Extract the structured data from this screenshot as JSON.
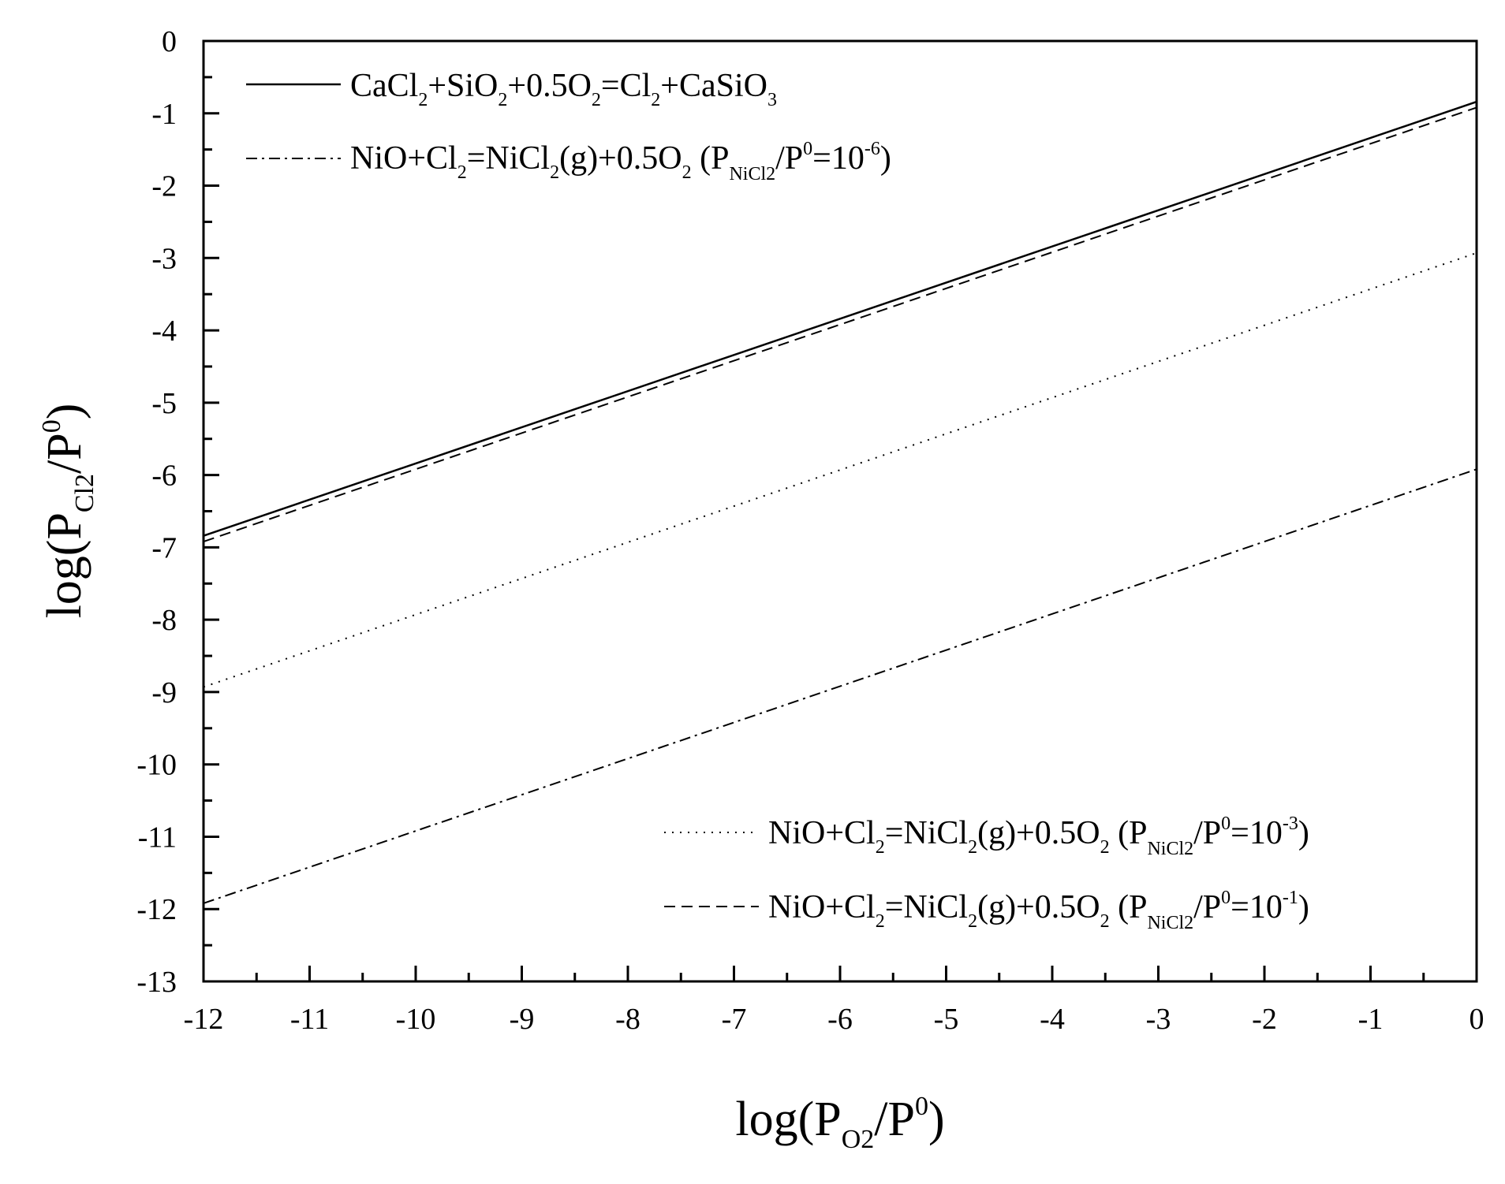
{
  "chart_data": {
    "type": "line",
    "xlabel": {
      "main": "log(P",
      "sub": "O2",
      "mid": "/P",
      "sup": "0",
      "end": ")"
    },
    "ylabel": {
      "main": "log(P",
      "sub": "Cl2",
      "mid": "/P",
      "sup": "0",
      "end": ")"
    },
    "xlim": [
      -12,
      0
    ],
    "ylim": [
      -13,
      0
    ],
    "xticks": [
      -12,
      -11,
      -10,
      -9,
      -8,
      -7,
      -6,
      -5,
      -4,
      -3,
      -2,
      -1,
      0
    ],
    "yticks": [
      0,
      -1,
      -2,
      -3,
      -4,
      -5,
      -6,
      -7,
      -8,
      -9,
      -10,
      -11,
      -12,
      -13
    ],
    "grid": false,
    "series": [
      {
        "name": "CaCl2+SiO2+0.5O2=Cl2+CaSiO3",
        "style": "solid",
        "x": [
          -12,
          0
        ],
        "y": [
          -6.84,
          -0.84
        ]
      },
      {
        "name": "NiO+Cl2=NiCl2(g)+0.5O2 (PNiCl2/P0=10-6)",
        "style": "dashdot",
        "x": [
          -12,
          0
        ],
        "y": [
          -11.92,
          -5.92
        ]
      },
      {
        "name": "NiO+Cl2=NiCl2(g)+0.5O2 (PNiCl2/P0=10-3)",
        "style": "dotted",
        "x": [
          -12,
          0
        ],
        "y": [
          -8.93,
          -2.93
        ]
      },
      {
        "name": "NiO+Cl2=NiCl2(g)+0.5O2 (PNiCl2/P0=10-1)",
        "style": "dashed",
        "x": [
          -12,
          0
        ],
        "y": [
          -6.92,
          -0.92
        ]
      }
    ],
    "legend_text": {
      "a": {
        "t1": "CaCl",
        "s1": "2",
        "t2": "+SiO",
        "s2": "2",
        "t3": "+0.5O",
        "s3": "2",
        "t4": "=Cl",
        "s4": "2",
        "t5": "+CaSiO",
        "s5": "3"
      },
      "b": {
        "t1": "NiO+Cl",
        "s1": "2",
        "t2": "=NiCl",
        "s2": "2",
        "t3": "(g)+0.5O",
        "s3": "2",
        "t4": " (P",
        "s4": "NiCl2",
        "t5": "/P",
        "u1": "0",
        "t6": "=10",
        "u2": "-6",
        "t7": ")"
      },
      "c": {
        "t1": "NiO+Cl",
        "s1": "2",
        "t2": "=NiCl",
        "s2": "2",
        "t3": "(g)+0.5O",
        "s3": "2",
        "t4": " (P",
        "s4": "NiCl2",
        "t5": "/P",
        "u1": "0",
        "t6": "=10",
        "u2": "-3",
        "t7": ")"
      },
      "d": {
        "t1": "NiO+Cl",
        "s1": "2",
        "t2": "=NiCl",
        "s2": "2",
        "t3": "(g)+0.5O",
        "s3": "2",
        "t4": " (P",
        "s4": "NiCl2",
        "t5": "/P",
        "u1": "0",
        "t6": "=10",
        "u2": "-1",
        "t7": ")"
      }
    }
  }
}
